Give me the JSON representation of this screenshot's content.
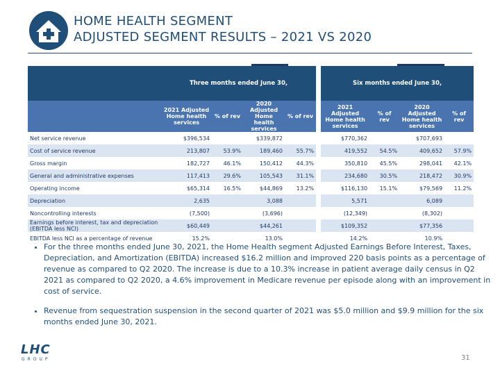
{
  "header": {
    "title_line1": "HOME HEALTH SEGMENT",
    "title_line2": "ADJUSTED SEGMENT RESULTS – 2021 VS 2020"
  },
  "table": {
    "groups": [
      "Three months ended June 30,",
      "Six months ended June 30,"
    ],
    "columns": [
      "2021 Adjusted Home health services",
      "% of rev",
      "2020 Adjusted Home health services",
      "% of rev",
      "2021 Adjusted Home health services",
      "% of rev",
      "2020 Adjusted Home health services",
      "% of rev"
    ],
    "rows": [
      [
        "Net service revenue",
        "$396,534",
        null,
        "$339,872",
        null,
        "$770,362",
        null,
        "$707,693",
        null
      ],
      [
        "Cost of service revenue",
        "213,807",
        "53.9%",
        "189,460",
        "55.7%",
        "419,552",
        "54.5%",
        "409,652",
        "57.9%"
      ],
      [
        "Gross margin",
        "182,727",
        "46.1%",
        "150,412",
        "44.3%",
        "350,810",
        "45.5%",
        "298,041",
        "42.1%"
      ],
      [
        "General and administrative expenses",
        "117,413",
        "29.6%",
        "105,543",
        "31.1%",
        "234,680",
        "30.5%",
        "218,472",
        "30.9%"
      ],
      [
        "Operating income",
        "$65,314",
        "16.5%",
        "$44,869",
        "13.2%",
        "$116,130",
        "15.1%",
        "$79,569",
        "11.2%"
      ],
      [
        "Depreciation",
        "2,635",
        null,
        "3,088",
        null,
        "5,571",
        null,
        "6,089",
        null
      ],
      [
        "Noncontrolling interests",
        "(7,500)",
        null,
        "(3,696)",
        null,
        "(12,349)",
        null,
        "(8,302)",
        null
      ],
      [
        "Earnings before interest, tax and depreciation (EBITDA less NCI)",
        "$60,449",
        null,
        "$44,261",
        null,
        "$109,352",
        null,
        "$77,356",
        null
      ],
      [
        "EBITDA less NCI as a percentage of revenue",
        "15.2%",
        null,
        "13.0%",
        null,
        "14.2%",
        null,
        "10.9%",
        null
      ]
    ]
  },
  "bullets": [
    "For the three months ended June 30, 2021, the Home Health segment Adjusted Earnings Before Interest, Taxes, Depreciation, and Amortization (EBITDA) increased $16.2 million and improved 220 basis points as a percentage of revenue as compared to Q2 2020. The increase is due to a 10.3% increase in patient average daily census in Q2 2021 as compared to Q2 2020, a 4.6% improvement in Medicare revenue per episode along with an improvement in cost of service.",
    "Revenue from sequestration suspension in the second quarter of 2021 was $5.0 million and $9.9 million for the six months ended June 30, 2021."
  ],
  "logo": {
    "name": "LHC",
    "tagline": "GROUP"
  },
  "page_number": "31"
}
